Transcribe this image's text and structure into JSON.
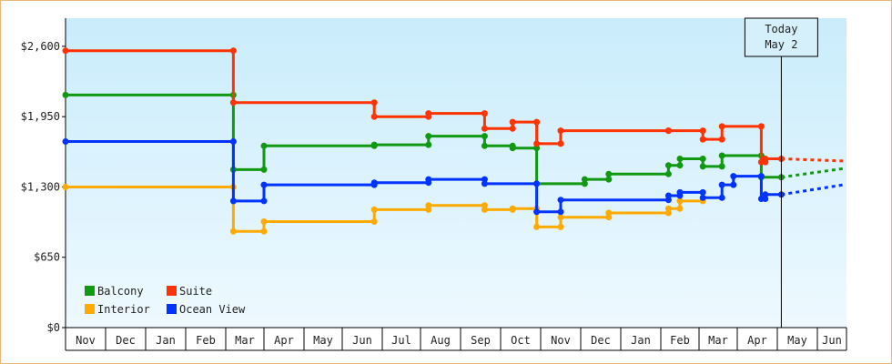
{
  "chart_data": {
    "type": "line",
    "title": "",
    "xlabel": "",
    "ylabel": "",
    "ylim": [
      0,
      2860
    ],
    "yticks": [
      0,
      650,
      1300,
      1950,
      2600
    ],
    "ytick_labels": [
      "$0",
      "$650",
      "$1,300",
      "$1,950",
      "$2,600"
    ],
    "grid": false,
    "legend_position": "bottom-left",
    "months": [
      "Nov",
      "Dec",
      "Jan",
      "Feb",
      "Mar",
      "Apr",
      "May",
      "Jun",
      "Jul",
      "Aug",
      "Sep",
      "Oct",
      "Nov",
      "Dec",
      "Jan",
      "Feb",
      "Mar",
      "Apr",
      "May",
      "Jun"
    ],
    "today": {
      "line1": "Today",
      "line2": "May 2",
      "x": 18.1
    },
    "series": [
      {
        "name": "Balcony",
        "color": "#119911",
        "points": [
          [
            0,
            2150
          ],
          [
            4.2,
            2150
          ],
          [
            4.2,
            1460
          ],
          [
            5.0,
            1460
          ],
          [
            5.0,
            1680
          ],
          [
            7.8,
            1680
          ],
          [
            7.8,
            1690
          ],
          [
            9.2,
            1690
          ],
          [
            9.2,
            1770
          ],
          [
            10.6,
            1770
          ],
          [
            10.6,
            1680
          ],
          [
            11.3,
            1680
          ],
          [
            11.3,
            1660
          ],
          [
            11.9,
            1660
          ],
          [
            11.9,
            1330
          ],
          [
            13.1,
            1330
          ],
          [
            13.1,
            1370
          ],
          [
            13.7,
            1370
          ],
          [
            13.7,
            1420
          ],
          [
            15.2,
            1420
          ],
          [
            15.2,
            1500
          ],
          [
            15.5,
            1500
          ],
          [
            15.5,
            1560
          ],
          [
            16.1,
            1560
          ],
          [
            16.1,
            1490
          ],
          [
            16.6,
            1490
          ],
          [
            16.6,
            1590
          ],
          [
            17.6,
            1590
          ],
          [
            17.6,
            1390
          ],
          [
            18.1,
            1390
          ]
        ],
        "forecast": [
          [
            18.1,
            1390
          ],
          [
            19.9,
            1470
          ]
        ]
      },
      {
        "name": "Suite",
        "color": "#ff3300",
        "points": [
          [
            0,
            2560
          ],
          [
            4.2,
            2560
          ],
          [
            4.2,
            2080
          ],
          [
            7.8,
            2080
          ],
          [
            7.8,
            1950
          ],
          [
            9.2,
            1950
          ],
          [
            9.2,
            1980
          ],
          [
            10.6,
            1980
          ],
          [
            10.6,
            1840
          ],
          [
            11.3,
            1840
          ],
          [
            11.3,
            1900
          ],
          [
            11.9,
            1900
          ],
          [
            11.9,
            1700
          ],
          [
            12.5,
            1700
          ],
          [
            12.5,
            1820
          ],
          [
            15.2,
            1820
          ],
          [
            15.2,
            1820
          ],
          [
            16.1,
            1820
          ],
          [
            16.1,
            1740
          ],
          [
            16.6,
            1740
          ],
          [
            16.6,
            1860
          ],
          [
            17.6,
            1860
          ],
          [
            17.6,
            1530
          ],
          [
            17.7,
            1530
          ],
          [
            17.7,
            1560
          ],
          [
            18.1,
            1560
          ]
        ],
        "forecast": [
          [
            18.1,
            1560
          ],
          [
            19.9,
            1540
          ]
        ]
      },
      {
        "name": "Interior",
        "color": "#ffaa00",
        "points": [
          [
            0,
            1300
          ],
          [
            4.2,
            1300
          ],
          [
            4.2,
            890
          ],
          [
            5.0,
            890
          ],
          [
            5.0,
            980
          ],
          [
            7.8,
            980
          ],
          [
            7.8,
            1090
          ],
          [
            9.2,
            1090
          ],
          [
            9.2,
            1130
          ],
          [
            10.6,
            1130
          ],
          [
            10.6,
            1090
          ],
          [
            11.3,
            1090
          ],
          [
            11.3,
            1100
          ],
          [
            11.9,
            1100
          ],
          [
            11.9,
            930
          ],
          [
            12.5,
            930
          ],
          [
            12.5,
            1020
          ],
          [
            13.7,
            1020
          ],
          [
            13.7,
            1060
          ],
          [
            15.2,
            1060
          ],
          [
            15.2,
            1100
          ],
          [
            15.5,
            1100
          ],
          [
            15.5,
            1170
          ],
          [
            16.1,
            1170
          ]
        ],
        "forecast": []
      },
      {
        "name": "Ocean View",
        "color": "#0033ff",
        "points": [
          [
            0,
            1720
          ],
          [
            4.2,
            1720
          ],
          [
            4.2,
            1170
          ],
          [
            5.0,
            1170
          ],
          [
            5.0,
            1320
          ],
          [
            7.8,
            1320
          ],
          [
            7.8,
            1340
          ],
          [
            9.2,
            1340
          ],
          [
            9.2,
            1370
          ],
          [
            10.6,
            1370
          ],
          [
            10.6,
            1330
          ],
          [
            11.9,
            1330
          ],
          [
            11.9,
            1070
          ],
          [
            12.5,
            1070
          ],
          [
            12.5,
            1180
          ],
          [
            15.2,
            1180
          ],
          [
            15.2,
            1220
          ],
          [
            15.5,
            1220
          ],
          [
            15.5,
            1250
          ],
          [
            16.1,
            1250
          ],
          [
            16.1,
            1200
          ],
          [
            16.6,
            1200
          ],
          [
            16.6,
            1320
          ],
          [
            16.9,
            1320
          ],
          [
            16.9,
            1400
          ],
          [
            17.6,
            1400
          ],
          [
            17.6,
            1190
          ],
          [
            17.7,
            1190
          ],
          [
            17.7,
            1230
          ],
          [
            18.1,
            1230
          ]
        ],
        "forecast": [
          [
            18.1,
            1230
          ],
          [
            19.9,
            1320
          ]
        ]
      }
    ]
  }
}
